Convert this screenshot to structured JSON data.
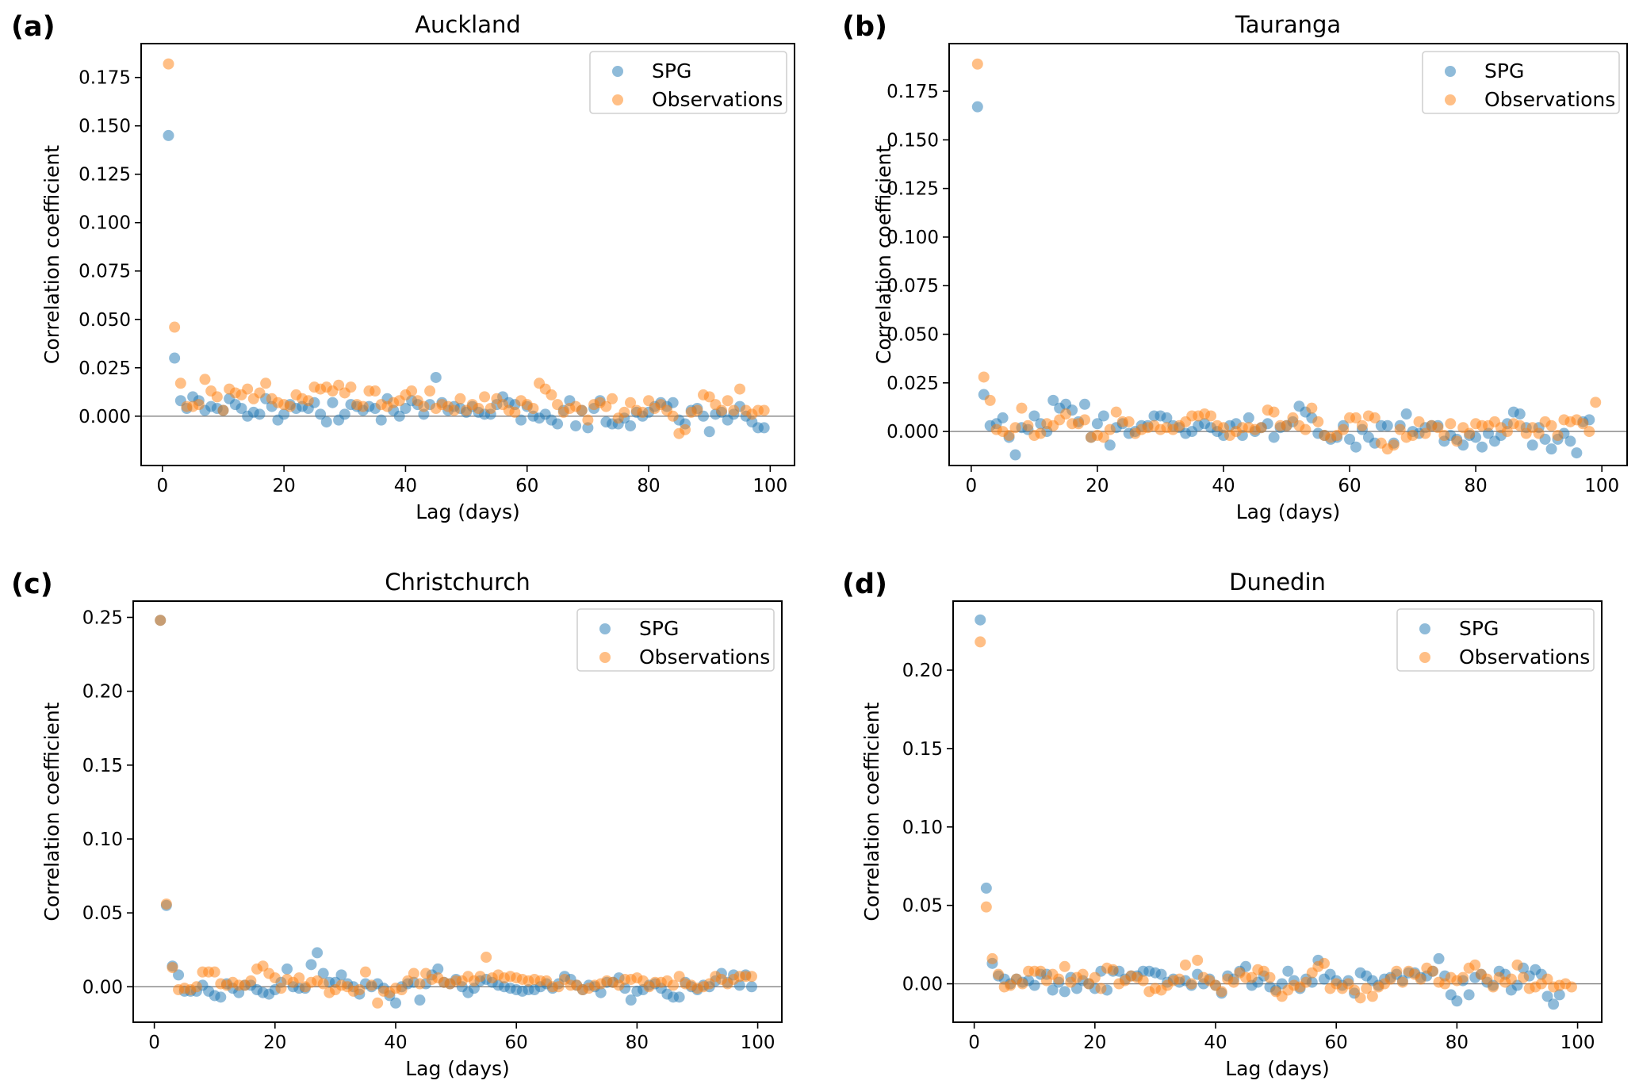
{
  "figure": {
    "legend_position": "top-right"
  },
  "colors": {
    "spg": "#1f77b4",
    "observations": "#ff7f0e",
    "zero_line": "#808080"
  },
  "chart_data": [
    {
      "type": "scatter",
      "panel_label": "(a)",
      "title": "Auckland",
      "xlabel": "Lag (days)",
      "ylabel": "Correlation coefficient",
      "xlim": [
        -3.5,
        104
      ],
      "ylim": [
        -0.0255,
        0.1925
      ],
      "xticks": [
        0,
        20,
        40,
        60,
        80,
        100
      ],
      "yticks": [
        0.0,
        0.025,
        0.05,
        0.075,
        0.1,
        0.125,
        0.15,
        0.175
      ],
      "ytick_labels": [
        "0.000",
        "0.025",
        "0.050",
        "0.075",
        "0.100",
        "0.125",
        "0.150",
        "0.175"
      ],
      "legend": [
        "SPG",
        "Observations"
      ],
      "series": [
        {
          "name": "SPG",
          "values": [
            0.145,
            0.03,
            0.008,
            0.004,
            0.01,
            0.008,
            0.003,
            0.005,
            0.004,
            0.003,
            0.009,
            0.006,
            0.004,
            0.0,
            0.002,
            0.001,
            0.009,
            0.005,
            -0.002,
            0.001,
            0.006,
            0.004,
            0.005,
            0.004,
            0.007,
            0.001,
            -0.003,
            0.007,
            -0.002,
            0.001,
            0.006,
            0.005,
            0.003,
            0.005,
            0.004,
            -0.002,
            0.009,
            0.003,
            0.0,
            0.004,
            0.008,
            0.006,
            0.001,
            0.006,
            0.02,
            0.007,
            0.003,
            0.005,
            0.004,
            0.002,
            0.005,
            0.002,
            0.001,
            0.001,
            0.006,
            0.01,
            0.007,
            0.006,
            -0.002,
            0.005,
            0.0,
            -0.001,
            0.001,
            -0.002,
            -0.004,
            0.003,
            0.008,
            -0.005,
            0.003,
            -0.006,
            0.004,
            0.008,
            -0.003,
            -0.004,
            -0.004,
            -0.001,
            -0.005,
            0.002,
            0.0,
            0.002,
            0.005,
            0.007,
            0.005,
            0.007,
            -0.002,
            -0.004,
            0.003,
            0.004,
            0.0,
            -0.008,
            0.001,
            0.002,
            -0.002,
            0.001,
            0.005,
            0.0,
            -0.003,
            -0.006,
            -0.006
          ]
        },
        {
          "name": "Observations",
          "values": [
            0.182,
            0.046,
            0.017,
            0.005,
            0.005,
            0.006,
            0.019,
            0.013,
            0.01,
            0.003,
            0.014,
            0.012,
            0.011,
            0.014,
            0.009,
            0.012,
            0.017,
            0.009,
            0.007,
            0.006,
            0.005,
            0.011,
            0.009,
            0.008,
            0.015,
            0.014,
            0.015,
            0.013,
            0.016,
            0.012,
            0.015,
            0.006,
            0.005,
            0.013,
            0.013,
            0.006,
            0.005,
            0.007,
            0.008,
            0.011,
            0.013,
            0.008,
            0.005,
            0.013,
            0.004,
            0.006,
            0.005,
            0.003,
            0.009,
            0.003,
            0.006,
            0.004,
            0.01,
            0.004,
            0.009,
            0.006,
            0.003,
            0.002,
            0.008,
            0.006,
            0.004,
            0.017,
            0.014,
            0.011,
            0.006,
            0.002,
            0.004,
            0.005,
            0.003,
            -0.002,
            0.006,
            0.007,
            0.005,
            0.009,
            -0.001,
            0.002,
            0.007,
            0.003,
            0.002,
            0.008,
            0.004,
            0.006,
            0.003,
            0.0,
            -0.009,
            -0.007,
            0.002,
            0.003,
            0.011,
            0.01,
            0.006,
            0.003,
            0.008,
            0.003,
            0.014,
            0.003,
            0.001,
            0.003,
            0.003
          ]
        }
      ]
    },
    {
      "type": "scatter",
      "panel_label": "(b)",
      "title": "Tauranga",
      "xlabel": "Lag (days)",
      "ylabel": "Correlation coefficient",
      "xlim": [
        -3.5,
        104
      ],
      "ylim": [
        -0.0175,
        0.1995
      ],
      "xticks": [
        0,
        20,
        40,
        60,
        80,
        100
      ],
      "yticks": [
        0.0,
        0.025,
        0.05,
        0.075,
        0.1,
        0.125,
        0.15,
        0.175
      ],
      "ytick_labels": [
        "0.000",
        "0.025",
        "0.050",
        "0.075",
        "0.100",
        "0.125",
        "0.150",
        "0.175"
      ],
      "legend": [
        "SPG",
        "Observations"
      ],
      "series": [
        {
          "name": "SPG",
          "values": [
            0.167,
            0.019,
            0.003,
            0.004,
            0.007,
            -0.003,
            -0.012,
            0.002,
            0.001,
            0.008,
            0.004,
            0.0,
            0.016,
            0.012,
            0.014,
            0.011,
            0.005,
            0.014,
            -0.003,
            0.004,
            0.008,
            -0.007,
            0.002,
            0.004,
            -0.001,
            0.0,
            0.003,
            0.003,
            0.008,
            0.008,
            0.007,
            0.003,
            0.002,
            -0.001,
            0.0,
            0.003,
            0.004,
            0.002,
            0.0,
            -0.002,
            0.003,
            0.004,
            -0.002,
            0.007,
            0.0,
            0.002,
            0.004,
            -0.003,
            0.002,
            0.003,
            0.005,
            0.013,
            0.01,
            0.007,
            -0.001,
            -0.002,
            -0.004,
            -0.003,
            0.003,
            -0.004,
            -0.008,
            0.001,
            -0.003,
            -0.006,
            0.003,
            0.003,
            -0.006,
            0.003,
            0.009,
            0.0,
            -0.001,
            0.002,
            0.003,
            0.003,
            -0.005,
            -0.002,
            -0.004,
            -0.007,
            -0.002,
            -0.003,
            -0.008,
            -0.001,
            -0.005,
            -0.002,
            0.004,
            0.01,
            0.009,
            0.002,
            -0.007,
            0.002,
            -0.004,
            -0.009,
            -0.004,
            -0.001,
            -0.005,
            -0.011,
            0.005,
            0.006
          ]
        },
        {
          "name": "Observations",
          "values": [
            0.189,
            0.028,
            0.016,
            0.001,
            0.0,
            -0.002,
            0.002,
            0.012,
            0.003,
            -0.002,
            -0.001,
            0.004,
            0.003,
            0.006,
            0.009,
            0.004,
            0.004,
            0.006,
            -0.003,
            -0.002,
            -0.003,
            0.001,
            0.01,
            0.005,
            0.005,
            -0.001,
            0.001,
            0.002,
            0.003,
            0.001,
            0.002,
            0.001,
            0.003,
            0.005,
            0.008,
            0.008,
            0.009,
            0.008,
            0.003,
            0.002,
            -0.002,
            0.0,
            0.002,
            0.002,
            0.001,
            0.002,
            0.011,
            0.01,
            0.003,
            0.003,
            0.007,
            0.003,
            0.001,
            0.012,
            0.005,
            -0.002,
            -0.003,
            -0.002,
            0.001,
            0.007,
            0.007,
            0.003,
            0.008,
            0.007,
            -0.006,
            -0.009,
            -0.007,
            0.001,
            -0.003,
            -0.002,
            0.005,
            -0.001,
            0.003,
            0.002,
            -0.002,
            0.004,
            -0.005,
            0.002,
            -0.001,
            0.004,
            0.003,
            0.003,
            0.005,
            0.002,
            0.0,
            0.004,
            0.003,
            -0.001,
            0.002,
            -0.001,
            0.005,
            0.003,
            -0.002,
            0.006,
            0.005,
            0.006,
            0.004,
            0.0,
            0.015
          ]
        }
      ]
    },
    {
      "type": "scatter",
      "panel_label": "(c)",
      "title": "Christchurch",
      "xlabel": "Lag (days)",
      "ylabel": "Correlation coefficient",
      "xlim": [
        -3.5,
        104
      ],
      "ylim": [
        -0.024,
        0.261
      ],
      "xticks": [
        0,
        20,
        40,
        60,
        80,
        100
      ],
      "yticks": [
        0.0,
        0.05,
        0.1,
        0.15,
        0.2,
        0.25
      ],
      "ytick_labels": [
        "0.00",
        "0.05",
        "0.10",
        "0.15",
        "0.20",
        "0.25"
      ],
      "legend": [
        "SPG",
        "Observations"
      ],
      "series": [
        {
          "name": "SPG",
          "values": [
            0.248,
            0.055,
            0.014,
            0.008,
            -0.003,
            -0.003,
            -0.003,
            0.001,
            -0.003,
            -0.006,
            -0.007,
            0.002,
            -0.001,
            -0.004,
            0.001,
            0.001,
            -0.002,
            -0.004,
            -0.005,
            -0.002,
            0.003,
            0.012,
            0.0,
            -0.001,
            -0.001,
            0.015,
            0.023,
            0.009,
            0.003,
            0.003,
            0.008,
            0.002,
            0.0,
            -0.005,
            0.002,
            0.0,
            0.002,
            -0.001,
            -0.006,
            -0.011,
            0.0,
            0.002,
            0.003,
            -0.009,
            0.002,
            0.008,
            0.012,
            0.003,
            0.002,
            0.005,
            0.0,
            -0.004,
            -0.001,
            0.004,
            0.005,
            0.003,
            0.001,
            0.0,
            -0.001,
            -0.002,
            -0.003,
            -0.002,
            -0.002,
            0.0,
            0.002,
            -0.001,
            0.002,
            0.007,
            0.005,
            0.001,
            -0.002,
            0.001,
            0.0,
            -0.004,
            0.003,
            0.003,
            0.006,
            -0.001,
            -0.009,
            -0.003,
            -0.002,
            0.001,
            0.002,
            -0.001,
            -0.005,
            -0.007,
            -0.007,
            0.003,
            0.0,
            -0.002,
            0.001,
            0.0,
            0.004,
            0.009,
            0.003,
            0.008,
            0.001,
            0.008,
            0.0
          ]
        },
        {
          "name": "Observations",
          "values": [
            0.248,
            0.056,
            0.013,
            -0.002,
            -0.001,
            -0.002,
            0.0,
            0.01,
            0.01,
            0.01,
            0.002,
            0.001,
            0.003,
            0.001,
            0.001,
            0.004,
            0.012,
            0.014,
            0.009,
            0.006,
            -0.001,
            0.005,
            0.003,
            0.006,
            0.0,
            0.003,
            0.004,
            0.002,
            -0.004,
            -0.002,
            0.001,
            0.0,
            -0.003,
            -0.002,
            0.01,
            0.001,
            -0.011,
            -0.003,
            -0.004,
            -0.001,
            -0.002,
            0.004,
            0.009,
            0.002,
            0.009,
            0.005,
            0.006,
            0.003,
            0.002,
            0.004,
            0.004,
            0.007,
            0.004,
            0.007,
            0.02,
            0.006,
            0.008,
            0.006,
            0.007,
            0.006,
            0.005,
            0.004,
            0.005,
            0.004,
            0.004,
            0.0,
            0.0,
            0.005,
            0.001,
            0.001,
            -0.002,
            -0.001,
            0.001,
            0.002,
            0.004,
            0.003,
            0.001,
            0.005,
            0.005,
            0.006,
            0.004,
            0.0,
            0.003,
            0.003,
            0.004,
            0.001,
            0.007,
            0.002,
            0.001,
            -0.001,
            0.0,
            0.002,
            0.007,
            0.005,
            0.002,
            0.005,
            0.007,
            0.007,
            0.007
          ]
        }
      ]
    },
    {
      "type": "scatter",
      "panel_label": "(d)",
      "title": "Dunedin",
      "xlabel": "Lag (days)",
      "ylabel": "Correlation coefficient",
      "xlim": [
        -3.5,
        104
      ],
      "ylim": [
        -0.0245,
        0.244
      ],
      "xticks": [
        0,
        20,
        40,
        60,
        80,
        100
      ],
      "yticks": [
        0.0,
        0.05,
        0.1,
        0.15,
        0.2
      ],
      "ytick_labels": [
        "0.00",
        "0.05",
        "0.10",
        "0.15",
        "0.20"
      ],
      "legend": [
        "SPG",
        "Observations"
      ],
      "series": [
        {
          "name": "SPG",
          "values": [
            0.232,
            0.061,
            0.013,
            0.005,
            0.003,
            0.0,
            0.003,
            0.001,
            0.002,
            -0.001,
            0.006,
            0.006,
            -0.004,
            0.001,
            -0.005,
            0.004,
            -0.003,
            0.002,
            0.0,
            -0.003,
            0.008,
            -0.004,
            0.008,
            0.008,
            0.003,
            0.005,
            0.005,
            0.008,
            0.008,
            0.007,
            0.006,
            0.001,
            0.003,
            0.001,
            0.002,
            -0.001,
            0.006,
            0.0,
            0.003,
            -0.001,
            -0.006,
            0.005,
            0.003,
            0.008,
            0.011,
            -0.001,
            0.001,
            0.005,
            -0.002,
            -0.004,
            0.0,
            0.008,
            0.002,
            -0.003,
            0.003,
            0.001,
            0.015,
            0.003,
            0.006,
            0.002,
            -0.001,
            0.002,
            -0.006,
            0.007,
            0.005,
            0.002,
            -0.001,
            0.003,
            0.004,
            0.006,
            0.002,
            0.007,
            0.007,
            0.004,
            0.005,
            0.008,
            0.016,
            0.005,
            -0.007,
            -0.011,
            0.002,
            -0.007,
            0.004,
            0.006,
            0.001,
            -0.001,
            0.008,
            0.006,
            -0.004,
            -0.001,
            0.01,
            0.005,
            0.009,
            0.006,
            -0.008,
            -0.013,
            -0.007
          ]
        },
        {
          "name": "Observations",
          "values": [
            0.218,
            0.049,
            0.016,
            0.006,
            -0.002,
            -0.001,
            0.003,
            0.0,
            0.008,
            0.008,
            0.008,
            0.002,
            0.006,
            0.003,
            0.011,
            0.001,
            0.004,
            0.006,
            0.0,
            0.004,
            -0.003,
            0.01,
            0.009,
            0.0,
            0.002,
            0.005,
            0.004,
            0.002,
            -0.005,
            -0.003,
            -0.004,
            -0.001,
            0.002,
            0.003,
            0.012,
            0.0,
            0.015,
            0.004,
            0.002,
            -0.001,
            -0.005,
            0.003,
            0.001,
            0.007,
            0.004,
            0.004,
            0.009,
            0.008,
            0.004,
            -0.005,
            -0.008,
            -0.004,
            -0.001,
            -0.002,
            0.001,
            0.007,
            0.011,
            0.013,
            -0.003,
            0.0,
            -0.003,
            0.0,
            -0.004,
            -0.009,
            -0.003,
            -0.008,
            -0.002,
            0.0,
            0.003,
            0.008,
            0.001,
            0.008,
            0.006,
            0.003,
            0.01,
            0.008,
            0.001,
            0.0,
            0.004,
            0.002,
            0.004,
            0.01,
            0.012,
            0.006,
            0.003,
            -0.002,
            0.004,
            0.001,
            0.003,
            0.012,
            0.004,
            -0.003,
            -0.002,
            0.0,
            0.003,
            -0.002,
            -0.001,
            0.0,
            -0.002
          ]
        }
      ]
    }
  ]
}
